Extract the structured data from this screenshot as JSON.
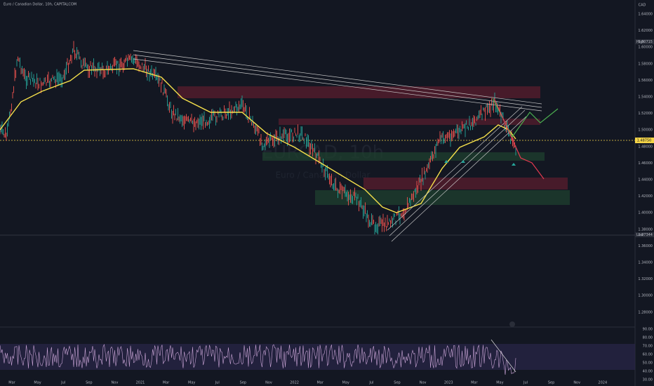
{
  "header": {
    "title": "Euro / Canadian Dollar, 10h, CAPITALCOM"
  },
  "watermark": {
    "symbol": "EURCAD, 10h",
    "name": "Euro / Canadian Dollar"
  },
  "price_axis": {
    "currency": "CAD",
    "labels": [
      "1.64000",
      "1.62000",
      "1.60000",
      "1.58000",
      "1.56000",
      "1.54000",
      "1.52000",
      "1.50000",
      "1.48000",
      "1.46000",
      "1.44000",
      "1.42000",
      "1.40000",
      "1.38000",
      "1.36000",
      "1.34000",
      "1.32000",
      "1.30000",
      "1.28000"
    ],
    "high": {
      "tag": "High",
      "value": "1.60715"
    },
    "low": {
      "tag": "Low",
      "value": "1.37344"
    },
    "last": "1.48750"
  },
  "rsi_axis": {
    "labels": [
      "90.00",
      "80.00",
      "70.00",
      "60.00",
      "50.00",
      "40.00",
      "30.00"
    ]
  },
  "time_axis": {
    "labels": [
      "Mar",
      "May",
      "Jul",
      "Sep",
      "Nov",
      "2021",
      "Mar",
      "May",
      "Jul",
      "Sep",
      "Nov",
      "2022",
      "Mar",
      "May",
      "Jul",
      "Sep",
      "Nov",
      "2023",
      "Mar",
      "May",
      "Jul",
      "Sep",
      "Nov",
      "2024"
    ]
  }
}
